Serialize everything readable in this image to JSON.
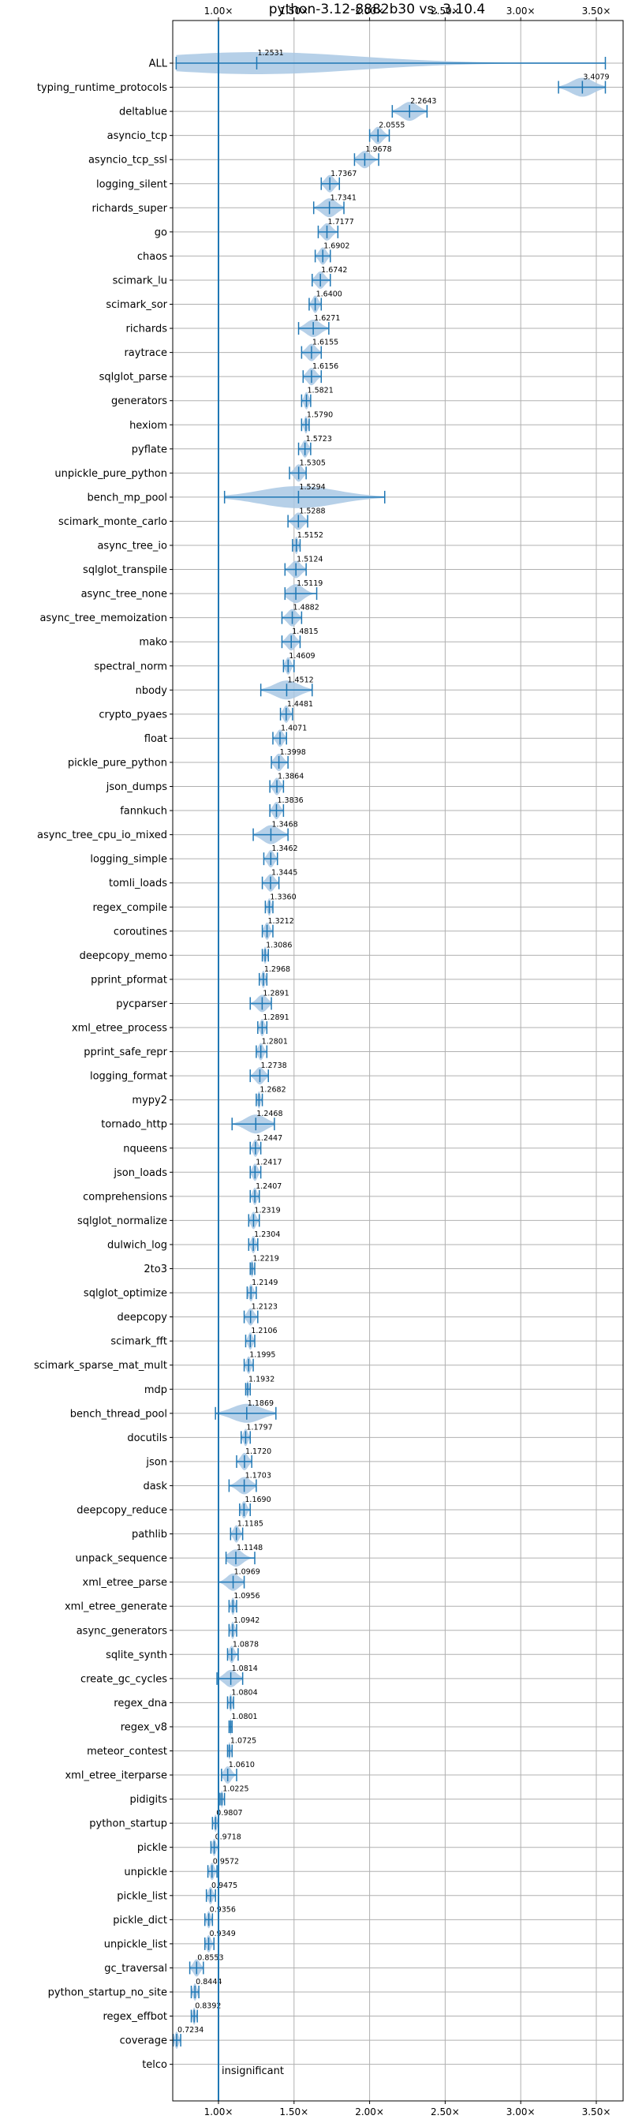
{
  "chart_data": {
    "type": "violin",
    "title": "python-3.12-8882b30 vs. 3.10.4",
    "x_tick_labels": [
      "1.00×",
      "1.50×",
      "2.00×",
      "2.50×",
      "3.00×",
      "3.50×"
    ],
    "x_ticks": [
      1.0,
      1.5,
      2.0,
      2.5,
      3.0,
      3.5
    ],
    "xlim": [
      0.66,
      3.62
    ],
    "reference_line": 1.0,
    "reference_annotation": "insignificant",
    "grid": true,
    "colors": {
      "violin": "#a9c8e4",
      "line": "#1f77b4",
      "grid": "#b0b0b0"
    },
    "categories": [
      "ALL",
      "typing_runtime_protocols",
      "deltablue",
      "asyncio_tcp",
      "asyncio_tcp_ssl",
      "logging_silent",
      "richards_super",
      "go",
      "chaos",
      "scimark_lu",
      "scimark_sor",
      "richards",
      "raytrace",
      "sqlglot_parse",
      "generators",
      "hexiom",
      "pyflate",
      "unpickle_pure_python",
      "bench_mp_pool",
      "scimark_monte_carlo",
      "async_tree_io",
      "sqlglot_transpile",
      "async_tree_none",
      "async_tree_memoization",
      "mako",
      "spectral_norm",
      "nbody",
      "crypto_pyaes",
      "float",
      "pickle_pure_python",
      "json_dumps",
      "fannkuch",
      "async_tree_cpu_io_mixed",
      "logging_simple",
      "tomli_loads",
      "regex_compile",
      "coroutines",
      "deepcopy_memo",
      "pprint_pformat",
      "pycparser",
      "xml_etree_process",
      "pprint_safe_repr",
      "logging_format",
      "mypy2",
      "tornado_http",
      "nqueens",
      "json_loads",
      "comprehensions",
      "sqlglot_normalize",
      "dulwich_log",
      "2to3",
      "sqlglot_optimize",
      "deepcopy",
      "scimark_fft",
      "scimark_sparse_mat_mult",
      "mdp",
      "bench_thread_pool",
      "docutils",
      "json",
      "dask",
      "deepcopy_reduce",
      "pathlib",
      "unpack_sequence",
      "xml_etree_parse",
      "xml_etree_generate",
      "async_generators",
      "sqlite_synth",
      "create_gc_cycles",
      "regex_dna",
      "regex_v8",
      "meteor_contest",
      "xml_etree_iterparse",
      "pidigits",
      "python_startup",
      "pickle",
      "unpickle",
      "pickle_list",
      "pickle_dict",
      "unpickle_list",
      "gc_traversal",
      "python_startup_no_site",
      "regex_effbot",
      "coverage",
      "telco"
    ],
    "values": [
      1.2531,
      3.4079,
      2.2643,
      2.0555,
      1.9678,
      1.7367,
      1.7341,
      1.7177,
      1.6902,
      1.6742,
      1.64,
      1.6271,
      1.6155,
      1.6156,
      1.5821,
      1.579,
      1.5723,
      1.5305,
      1.5294,
      1.5288,
      1.5152,
      1.5124,
      1.5119,
      1.4882,
      1.4815,
      1.4609,
      1.4512,
      1.4481,
      1.4071,
      1.3998,
      1.3864,
      1.3836,
      1.3468,
      1.3462,
      1.3445,
      1.336,
      1.3212,
      1.3086,
      1.2968,
      1.2891,
      1.2891,
      1.2801,
      1.2738,
      1.2682,
      1.2468,
      1.2447,
      1.2417,
      1.2407,
      1.2319,
      1.2304,
      1.2219,
      1.2149,
      1.2123,
      1.2106,
      1.1995,
      1.1932,
      1.1869,
      1.1797,
      1.172,
      1.1703,
      1.169,
      1.1185,
      1.1148,
      1.0969,
      1.0956,
      1.0942,
      1.0878,
      1.0814,
      1.0804,
      1.0801,
      1.0725,
      1.061,
      1.0225,
      0.9807,
      0.9718,
      0.9572,
      0.9475,
      0.9356,
      0.9349,
      0.8553,
      0.8444,
      0.8392,
      0.7234,
      null
    ],
    "value_labels": [
      "1.2531",
      "3.4079",
      "2.2643",
      "2.0555",
      "1.9678",
      "1.7367",
      "1.7341",
      "1.7177",
      "1.6902",
      "1.6742",
      "1.6400",
      "1.6271",
      "1.6155",
      "1.6156",
      "1.5821",
      "1.5790",
      "1.5723",
      "1.5305",
      "1.5294",
      "1.5288",
      "1.5152",
      "1.5124",
      "1.5119",
      "1.4882",
      "1.4815",
      "1.4609",
      "1.4512",
      "1.4481",
      "1.4071",
      "1.3998",
      "1.3864",
      "1.3836",
      "1.3468",
      "1.3462",
      "1.3445",
      "1.3360",
      "1.3212",
      "1.3086",
      "1.2968",
      "1.2891",
      "1.2891",
      "1.2801",
      "1.2738",
      "1.2682",
      "1.2468",
      "1.2447",
      "1.2417",
      "1.2407",
      "1.2319",
      "1.2304",
      "1.2219",
      "1.2149",
      "1.2123",
      "1.2106",
      "1.1995",
      "1.1932",
      "1.1869",
      "1.1797",
      "1.1720",
      "1.1703",
      "1.1690",
      "1.1185",
      "1.1148",
      "1.0969",
      "1.0956",
      "1.0942",
      "1.0878",
      "1.0814",
      "1.0804",
      "1.0801",
      "1.0725",
      "1.0610",
      "1.0225",
      "0.9807",
      "0.9718",
      "0.9572",
      "0.9475",
      "0.9356",
      "0.9349",
      "0.8553",
      "0.8444",
      "0.8392",
      "0.7234",
      ""
    ],
    "ranges": [
      [
        0.72,
        3.56
      ],
      [
        3.25,
        3.56
      ],
      [
        2.15,
        2.38
      ],
      [
        2.0,
        2.13
      ],
      [
        1.9,
        2.06
      ],
      [
        1.68,
        1.8
      ],
      [
        1.63,
        1.83
      ],
      [
        1.66,
        1.79
      ],
      [
        1.64,
        1.74
      ],
      [
        1.62,
        1.74
      ],
      [
        1.6,
        1.68
      ],
      [
        1.53,
        1.73
      ],
      [
        1.55,
        1.68
      ],
      [
        1.56,
        1.68
      ],
      [
        1.55,
        1.61
      ],
      [
        1.55,
        1.6
      ],
      [
        1.53,
        1.61
      ],
      [
        1.47,
        1.58
      ],
      [
        1.04,
        2.1
      ],
      [
        1.46,
        1.59
      ],
      [
        1.49,
        1.54
      ],
      [
        1.44,
        1.58
      ],
      [
        1.44,
        1.65
      ],
      [
        1.42,
        1.55
      ],
      [
        1.42,
        1.54
      ],
      [
        1.43,
        1.5
      ],
      [
        1.28,
        1.62
      ],
      [
        1.41,
        1.49
      ],
      [
        1.36,
        1.45
      ],
      [
        1.35,
        1.46
      ],
      [
        1.34,
        1.43
      ],
      [
        1.34,
        1.43
      ],
      [
        1.23,
        1.46
      ],
      [
        1.3,
        1.39
      ],
      [
        1.29,
        1.4
      ],
      [
        1.31,
        1.36
      ],
      [
        1.29,
        1.36
      ],
      [
        1.29,
        1.33
      ],
      [
        1.27,
        1.32
      ],
      [
        1.21,
        1.35
      ],
      [
        1.26,
        1.32
      ],
      [
        1.25,
        1.32
      ],
      [
        1.21,
        1.33
      ],
      [
        1.25,
        1.29
      ],
      [
        1.09,
        1.37
      ],
      [
        1.21,
        1.28
      ],
      [
        1.21,
        1.28
      ],
      [
        1.21,
        1.27
      ],
      [
        1.2,
        1.27
      ],
      [
        1.2,
        1.26
      ],
      [
        1.21,
        1.24
      ],
      [
        1.19,
        1.25
      ],
      [
        1.17,
        1.26
      ],
      [
        1.18,
        1.24
      ],
      [
        1.17,
        1.23
      ],
      [
        1.18,
        1.21
      ],
      [
        0.98,
        1.38
      ],
      [
        1.15,
        1.21
      ],
      [
        1.12,
        1.22
      ],
      [
        1.07,
        1.25
      ],
      [
        1.14,
        1.21
      ],
      [
        1.08,
        1.16
      ],
      [
        1.05,
        1.24
      ],
      [
        1.0,
        1.17
      ],
      [
        1.07,
        1.12
      ],
      [
        1.07,
        1.12
      ],
      [
        1.06,
        1.13
      ],
      [
        0.99,
        1.16
      ],
      [
        1.06,
        1.1
      ],
      [
        1.07,
        1.09
      ],
      [
        1.06,
        1.09
      ],
      [
        1.02,
        1.12
      ],
      [
        1.01,
        1.04
      ],
      [
        0.96,
        1.0
      ],
      [
        0.95,
        1.0
      ],
      [
        0.93,
        0.99
      ],
      [
        0.92,
        0.98
      ],
      [
        0.91,
        0.96
      ],
      [
        0.91,
        0.97
      ],
      [
        0.81,
        0.9
      ],
      [
        0.82,
        0.87
      ],
      [
        0.82,
        0.86
      ],
      [
        0.7,
        0.75
      ],
      null
    ]
  }
}
